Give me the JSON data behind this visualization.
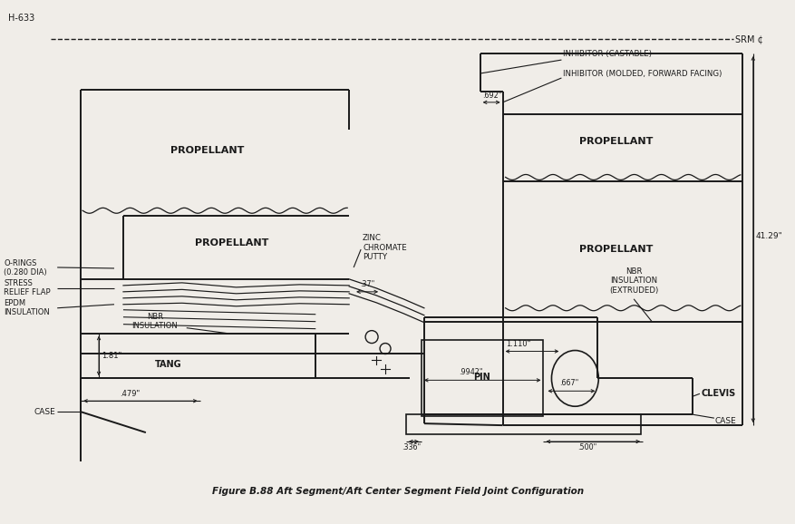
{
  "title": "Figure B.88 Aft Segment/Aft Center Segment Field Joint Configuration",
  "header": "H-633",
  "srm_label": "SRM ¢",
  "background_color": "#f0ede8",
  "line_color": "#1a1a1a",
  "labels": {
    "propellant_left_top": "PROPELLANT",
    "propellant_left_mid": "PROPELLANT",
    "propellant_right_top": "PROPELLANT",
    "propellant_right_mid": "PROPELLANT",
    "inhibitor_castable": "INHIBITOR (CASTABLE)",
    "inhibitor_molded": "INHIBITOR (MOLDED, FORWARD FACING)",
    "zinc_chromate": "ZINC\nCHROMATE\nPUTTY",
    "o_rings": "O-RINGS\n(0.280 DIA)",
    "stress_relief": "STRESS\nRELIEF FLAP",
    "epdm": "EPDM\nINSULATION",
    "nbr_left": "NBR\nINSULATION",
    "nbr_right": "NBR\nINSULATION\n(EXTRUDED)",
    "tang": "TANG",
    "clevis": "CLEVIS",
    "case_left": "CASE",
    "case_right": "CASE",
    "pin": "PIN",
    "dim_692": ".692\"",
    "dim_37": ".37\"",
    "dim_1110": "1.110\"",
    "dim_4129": "41.29\"",
    "dim_181": "1.81\"",
    "dim_479": ".479\"",
    "dim_9942": ".9942\"",
    "dim_667": ".667\"",
    "dim_336": ".336\"",
    "dim_500": ".500\""
  }
}
